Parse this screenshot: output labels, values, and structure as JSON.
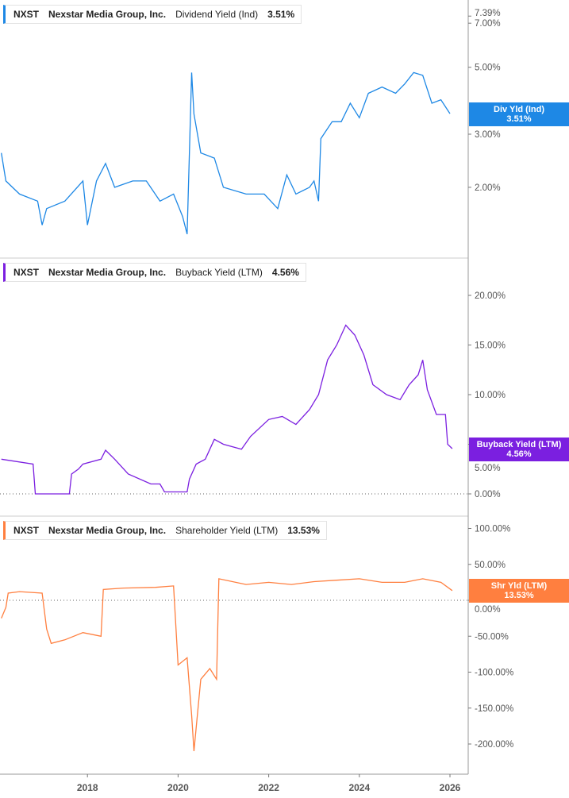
{
  "ticker": "NXST",
  "company": "Nexstar Media Group, Inc.",
  "chart_data": [
    {
      "type": "line",
      "title": "Dividend Yield (Ind)",
      "legend_value": "3.51%",
      "tag_label": "Div Yld (Ind)",
      "tag_value": "3.51%",
      "color": "#1e88e5",
      "scale": "log",
      "yticks": [
        "7.39%",
        "7.00%",
        "5.00%",
        "3.00%",
        "2.00%"
      ],
      "points": [
        [
          2016.1,
          2.6
        ],
        [
          2016.2,
          2.1
        ],
        [
          2016.5,
          1.9
        ],
        [
          2016.9,
          1.8
        ],
        [
          2017.0,
          1.5
        ],
        [
          2017.1,
          1.7
        ],
        [
          2017.5,
          1.8
        ],
        [
          2017.9,
          2.1
        ],
        [
          2018.0,
          1.5
        ],
        [
          2018.2,
          2.1
        ],
        [
          2018.4,
          2.4
        ],
        [
          2018.6,
          2.0
        ],
        [
          2019.0,
          2.1
        ],
        [
          2019.3,
          2.1
        ],
        [
          2019.6,
          1.8
        ],
        [
          2019.9,
          1.9
        ],
        [
          2020.1,
          1.6
        ],
        [
          2020.2,
          1.4
        ],
        [
          2020.3,
          4.8
        ],
        [
          2020.35,
          3.5
        ],
        [
          2020.5,
          2.6
        ],
        [
          2020.8,
          2.5
        ],
        [
          2021.0,
          2.0
        ],
        [
          2021.5,
          1.9
        ],
        [
          2021.9,
          1.9
        ],
        [
          2022.2,
          1.7
        ],
        [
          2022.4,
          2.2
        ],
        [
          2022.6,
          1.9
        ],
        [
          2022.9,
          2.0
        ],
        [
          2023.0,
          2.1
        ],
        [
          2023.1,
          1.8
        ],
        [
          2023.15,
          2.9
        ],
        [
          2023.4,
          3.3
        ],
        [
          2023.6,
          3.3
        ],
        [
          2023.8,
          3.8
        ],
        [
          2024.0,
          3.4
        ],
        [
          2024.2,
          4.1
        ],
        [
          2024.5,
          4.3
        ],
        [
          2024.8,
          4.1
        ],
        [
          2025.0,
          4.4
        ],
        [
          2025.2,
          4.8
        ],
        [
          2025.4,
          4.7
        ],
        [
          2025.6,
          3.8
        ],
        [
          2025.8,
          3.9
        ],
        [
          2026.0,
          3.51
        ]
      ]
    },
    {
      "type": "line",
      "title": "Buyback Yield (LTM)",
      "legend_value": "4.56%",
      "tag_label": "Buyback Yield (LTM)",
      "tag_value": "4.56%",
      "color": "#7b1fe0",
      "ylim": [
        0,
        20
      ],
      "yticks": [
        "20.00%",
        "15.00%",
        "10.00%",
        "5.00%",
        "0.00%"
      ],
      "points": [
        [
          2016.1,
          3.5
        ],
        [
          2016.8,
          3.0
        ],
        [
          2016.85,
          0
        ],
        [
          2017.6,
          0
        ],
        [
          2017.65,
          2.0
        ],
        [
          2017.8,
          2.5
        ],
        [
          2017.9,
          3.0
        ],
        [
          2018.3,
          3.5
        ],
        [
          2018.4,
          4.4
        ],
        [
          2018.6,
          3.5
        ],
        [
          2018.9,
          2.0
        ],
        [
          2019.4,
          1.0
        ],
        [
          2019.6,
          1.0
        ],
        [
          2019.7,
          0.2
        ],
        [
          2020.2,
          0.2
        ],
        [
          2020.25,
          1.5
        ],
        [
          2020.4,
          3.0
        ],
        [
          2020.6,
          3.5
        ],
        [
          2020.8,
          5.5
        ],
        [
          2021.0,
          5.0
        ],
        [
          2021.4,
          4.5
        ],
        [
          2021.6,
          5.8
        ],
        [
          2022.0,
          7.5
        ],
        [
          2022.3,
          7.8
        ],
        [
          2022.6,
          7.0
        ],
        [
          2022.9,
          8.5
        ],
        [
          2023.1,
          10.0
        ],
        [
          2023.3,
          13.5
        ],
        [
          2023.5,
          15.0
        ],
        [
          2023.7,
          17.0
        ],
        [
          2023.9,
          16.0
        ],
        [
          2024.1,
          14.0
        ],
        [
          2024.3,
          11.0
        ],
        [
          2024.6,
          10.0
        ],
        [
          2024.9,
          9.5
        ],
        [
          2025.1,
          11.0
        ],
        [
          2025.3,
          12.0
        ],
        [
          2025.4,
          13.5
        ],
        [
          2025.5,
          10.5
        ],
        [
          2025.7,
          8.0
        ],
        [
          2025.9,
          8.0
        ],
        [
          2025.95,
          5.0
        ],
        [
          2026.05,
          4.56
        ]
      ]
    },
    {
      "type": "line",
      "title": "Shareholder Yield (LTM)",
      "legend_value": "13.53%",
      "tag_label": "Shr Yld (LTM)",
      "tag_value": "13.53%",
      "color": "#ff7f3f",
      "yticks": [
        "100.00%",
        "50.00%",
        "0.00%",
        "-50.00%",
        "-100.00%",
        "-150.00%",
        "-200.00%"
      ],
      "points": [
        [
          2016.1,
          -25
        ],
        [
          2016.2,
          -10
        ],
        [
          2016.25,
          10
        ],
        [
          2016.5,
          12
        ],
        [
          2017.0,
          10
        ],
        [
          2017.1,
          -40
        ],
        [
          2017.2,
          -60
        ],
        [
          2017.5,
          -55
        ],
        [
          2017.9,
          -45
        ],
        [
          2018.3,
          -50
        ],
        [
          2018.35,
          15
        ],
        [
          2018.8,
          17
        ],
        [
          2019.5,
          18
        ],
        [
          2019.9,
          20
        ],
        [
          2020.0,
          -90
        ],
        [
          2020.2,
          -80
        ],
        [
          2020.3,
          -160
        ],
        [
          2020.35,
          -210
        ],
        [
          2020.5,
          -110
        ],
        [
          2020.7,
          -95
        ],
        [
          2020.85,
          -110
        ],
        [
          2020.9,
          30
        ],
        [
          2021.5,
          22
        ],
        [
          2022.0,
          25
        ],
        [
          2022.5,
          22
        ],
        [
          2023.0,
          26
        ],
        [
          2023.5,
          28
        ],
        [
          2024.0,
          30
        ],
        [
          2024.5,
          25
        ],
        [
          2025.0,
          25
        ],
        [
          2025.4,
          30
        ],
        [
          2025.8,
          25
        ],
        [
          2026.05,
          13.53
        ]
      ]
    }
  ],
  "xticks": [
    "2018",
    "2020",
    "2022",
    "2024",
    "2026"
  ]
}
